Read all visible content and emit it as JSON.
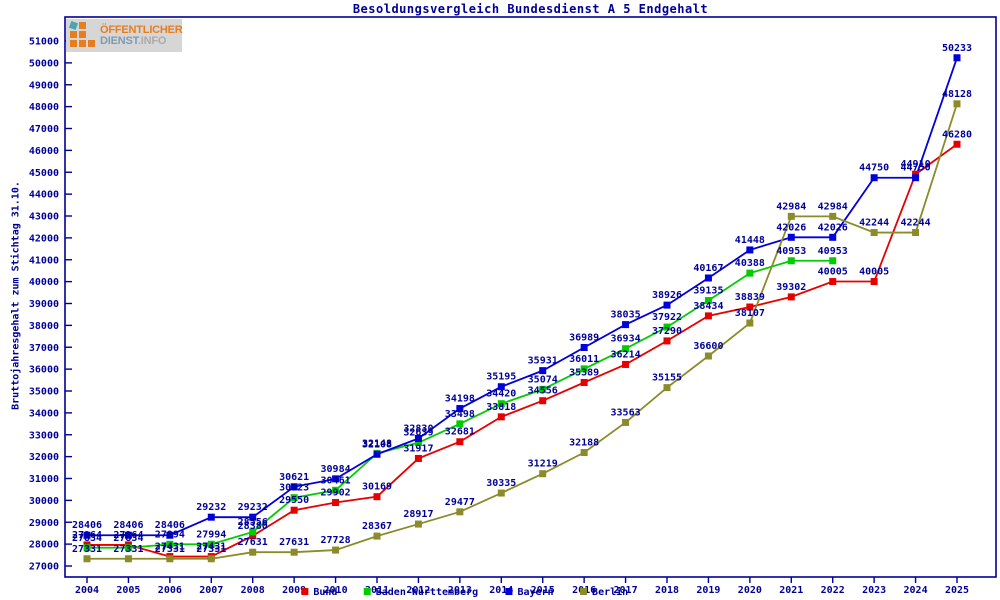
{
  "title": "Besoldungsvergleich Bundesdienst A 5 Endgehalt",
  "logo": {
    "line1": "ÖFFENTLICHER",
    "line2a": "DIENST",
    "line2b": ".INFO"
  },
  "chart_data": {
    "type": "line",
    "title": "Besoldungsvergleich Bundesdienst A 5 Endgehalt",
    "xlabel": "",
    "ylabel": "Bruttojahresgehalt zum Stichtag 31.10.",
    "ylim": [
      27000,
      51000
    ],
    "ytick_step": 1000,
    "grid": false,
    "legend_position": "bottom",
    "point_labels": true,
    "axis_color": "#000099",
    "x": [
      2004,
      2005,
      2006,
      2007,
      2008,
      2009,
      2010,
      2011,
      2012,
      2013,
      2014,
      2015,
      2016,
      2017,
      2018,
      2019,
      2020,
      2021,
      2022,
      2023,
      2024,
      2025
    ],
    "series": [
      {
        "name": "Bund",
        "color": "#e60000",
        "values": [
          27964,
          27964,
          27431,
          27431,
          28380,
          29550,
          29902,
          30169,
          31917,
          32681,
          33818,
          34556,
          35389,
          36214,
          37290,
          38434,
          38839,
          39302,
          40005,
          40005,
          44910,
          46280
        ]
      },
      {
        "name": "Baden-Württemberg",
        "color": "#00cc00",
        "values": [
          27834,
          27834,
          27994,
          27994,
          28556,
          30123,
          30461,
          32148,
          32639,
          33498,
          34420,
          35074,
          36011,
          36934,
          37922,
          39135,
          40388,
          40953,
          40953,
          null,
          null,
          null
        ]
      },
      {
        "name": "Bayern",
        "color": "#0000dd",
        "values": [
          28406,
          28406,
          28406,
          29232,
          29232,
          30621,
          30984,
          32108,
          32830,
          34198,
          35195,
          35931,
          36989,
          38035,
          38926,
          40167,
          41448,
          42026,
          42026,
          44750,
          44750,
          50233
        ]
      },
      {
        "name": "Berlin",
        "color": "#8b8b2b",
        "values": [
          27331,
          27331,
          27331,
          27331,
          27631,
          27631,
          27728,
          28367,
          28917,
          29477,
          30335,
          31219,
          32188,
          33563,
          35155,
          36600,
          38107,
          42984,
          42984,
          42244,
          42244,
          48128
        ]
      }
    ]
  }
}
